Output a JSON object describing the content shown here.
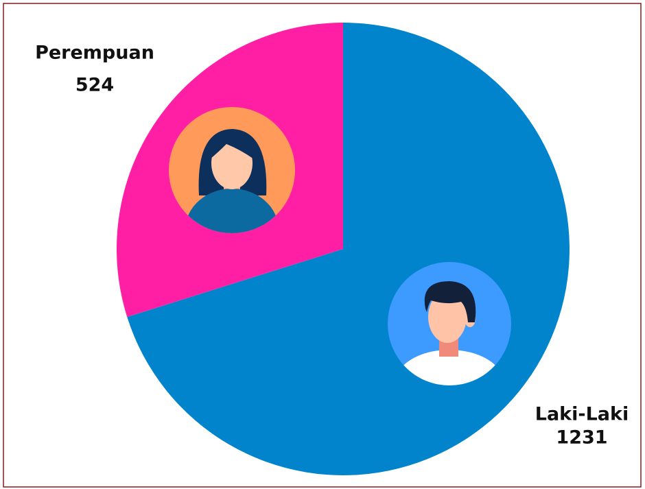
{
  "chart_data": {
    "type": "pie",
    "categories": [
      "Laki-Laki",
      "Perempuan"
    ],
    "values": [
      1231,
      524
    ],
    "colors": [
      "#0284cc",
      "#ff1fa5"
    ]
  }
}
